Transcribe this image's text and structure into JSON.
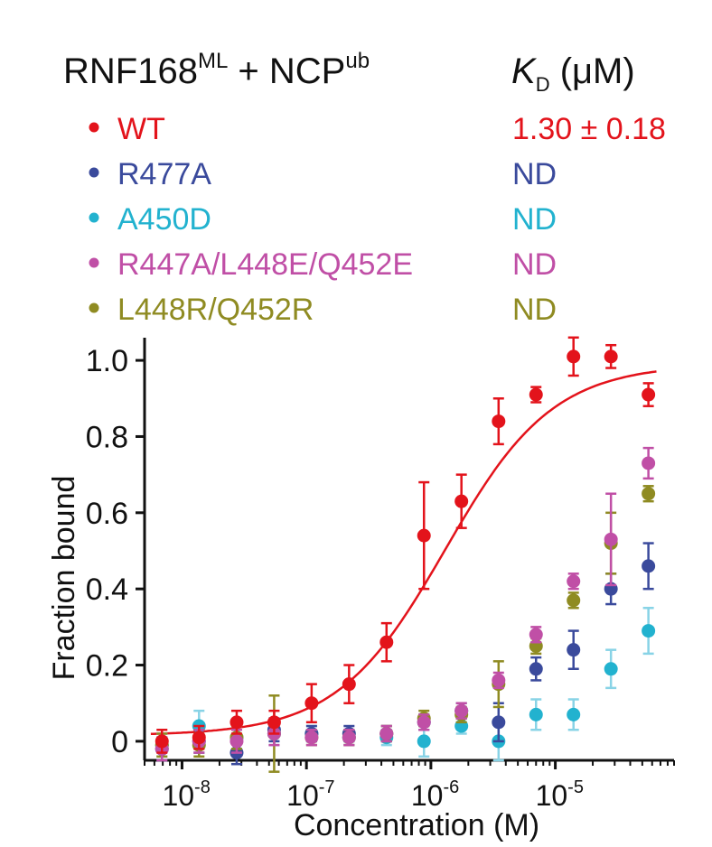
{
  "header": {
    "title_main": "RNF168",
    "title_sup": "ML",
    "title_mid": " + NCP",
    "title_sup2": "ub",
    "kd_symbol": "K",
    "kd_sub": "D",
    "kd_unit": " (μM)"
  },
  "legend_kd": [
    "1.30 ± 0.18",
    "ND",
    "ND",
    "ND",
    "ND"
  ],
  "chart_data": {
    "type": "scatter",
    "xlabel": "Concentration (M)",
    "ylabel": "Fraction bound",
    "x_scale": "log",
    "xlim": [
      5e-09,
      9e-05
    ],
    "ylim": [
      -0.05,
      1.05
    ],
    "y_ticks": [
      0,
      0.2,
      0.4,
      0.6,
      0.8,
      1.0
    ],
    "y_tick_labels": [
      "0",
      "0.2",
      "0.4",
      "0.6",
      "0.8",
      "1.0"
    ],
    "x_ticks": [
      1e-08,
      1e-07,
      1e-06,
      1e-05
    ],
    "x_tick_labels": [
      {
        "base": "10",
        "exp": "-8"
      },
      {
        "base": "10",
        "exp": "-7"
      },
      {
        "base": "10",
        "exp": "-6"
      },
      {
        "base": "10",
        "exp": "-5"
      }
    ],
    "x": [
      6.9e-09,
      1.37e-08,
      2.75e-08,
      5.5e-08,
      1.1e-07,
      2.2e-07,
      4.4e-07,
      8.8e-07,
      1.76e-06,
      3.5e-06,
      7e-06,
      1.4e-05,
      2.8e-05,
      5.6e-05
    ],
    "series": [
      {
        "name": "WT",
        "kd": "1.30 ± 0.18",
        "color": "#e3131b",
        "bar_color": "#e3131b",
        "y": [
          0.0,
          0.01,
          0.05,
          0.05,
          0.1,
          0.15,
          0.26,
          0.54,
          0.63,
          0.84,
          0.91,
          1.01,
          1.01,
          0.91
        ],
        "err": [
          0.03,
          0.03,
          0.03,
          0.03,
          0.05,
          0.05,
          0.05,
          0.14,
          0.07,
          0.06,
          0.02,
          0.05,
          0.03,
          0.03
        ],
        "fit": {
          "model": "hill",
          "bottom": 0.015,
          "top": 0.99,
          "ec50": 1.3e-06,
          "hill": 1.0
        }
      },
      {
        "name": "R477A",
        "kd": "ND",
        "color": "#3a4a9c",
        "bar_color": "#3a4a9c",
        "y": [
          -0.02,
          0.0,
          -0.03,
          0.03,
          0.02,
          0.02,
          0.02,
          0.05,
          0.08,
          0.05,
          0.19,
          0.24,
          0.4,
          0.46
        ],
        "err": [
          0.03,
          0.03,
          0.03,
          0.03,
          0.02,
          0.02,
          0.02,
          0.02,
          0.02,
          0.05,
          0.03,
          0.05,
          0.04,
          0.06
        ]
      },
      {
        "name": "A450D",
        "kd": "ND",
        "color": "#22b2cf",
        "bar_color": "#88d3e6",
        "y": [
          -0.01,
          0.04,
          0.01,
          0.02,
          0.02,
          0.01,
          0.01,
          0.0,
          0.04,
          0.0,
          0.07,
          0.07,
          0.19,
          0.29
        ],
        "err": [
          0.03,
          0.04,
          0.03,
          0.03,
          0.02,
          0.02,
          0.02,
          0.04,
          0.02,
          0.05,
          0.04,
          0.04,
          0.05,
          0.06
        ]
      },
      {
        "name": "R447A/L448E/Q452E",
        "kd": "ND",
        "color": "#c04fa6",
        "bar_color": "#c04fa6",
        "y": [
          -0.02,
          0.0,
          0.0,
          0.02,
          0.01,
          0.01,
          0.02,
          0.05,
          0.08,
          0.16,
          0.28,
          0.42,
          0.53,
          0.73
        ],
        "err": [
          0.03,
          0.03,
          0.03,
          0.03,
          0.02,
          0.02,
          0.02,
          0.02,
          0.02,
          0.02,
          0.02,
          0.02,
          0.12,
          0.04
        ]
      },
      {
        "name": "L448R/Q452R",
        "kd": "ND",
        "color": "#8f8b22",
        "bar_color": "#8f8b22",
        "y": [
          -0.01,
          -0.01,
          0.01,
          0.02,
          0.01,
          0.01,
          0.02,
          0.06,
          0.07,
          0.15,
          0.25,
          0.37,
          0.52,
          0.65
        ],
        "err": [
          0.03,
          0.03,
          0.03,
          0.1,
          0.02,
          0.02,
          0.02,
          0.02,
          0.02,
          0.06,
          0.02,
          0.02,
          0.08,
          0.02
        ]
      }
    ]
  }
}
